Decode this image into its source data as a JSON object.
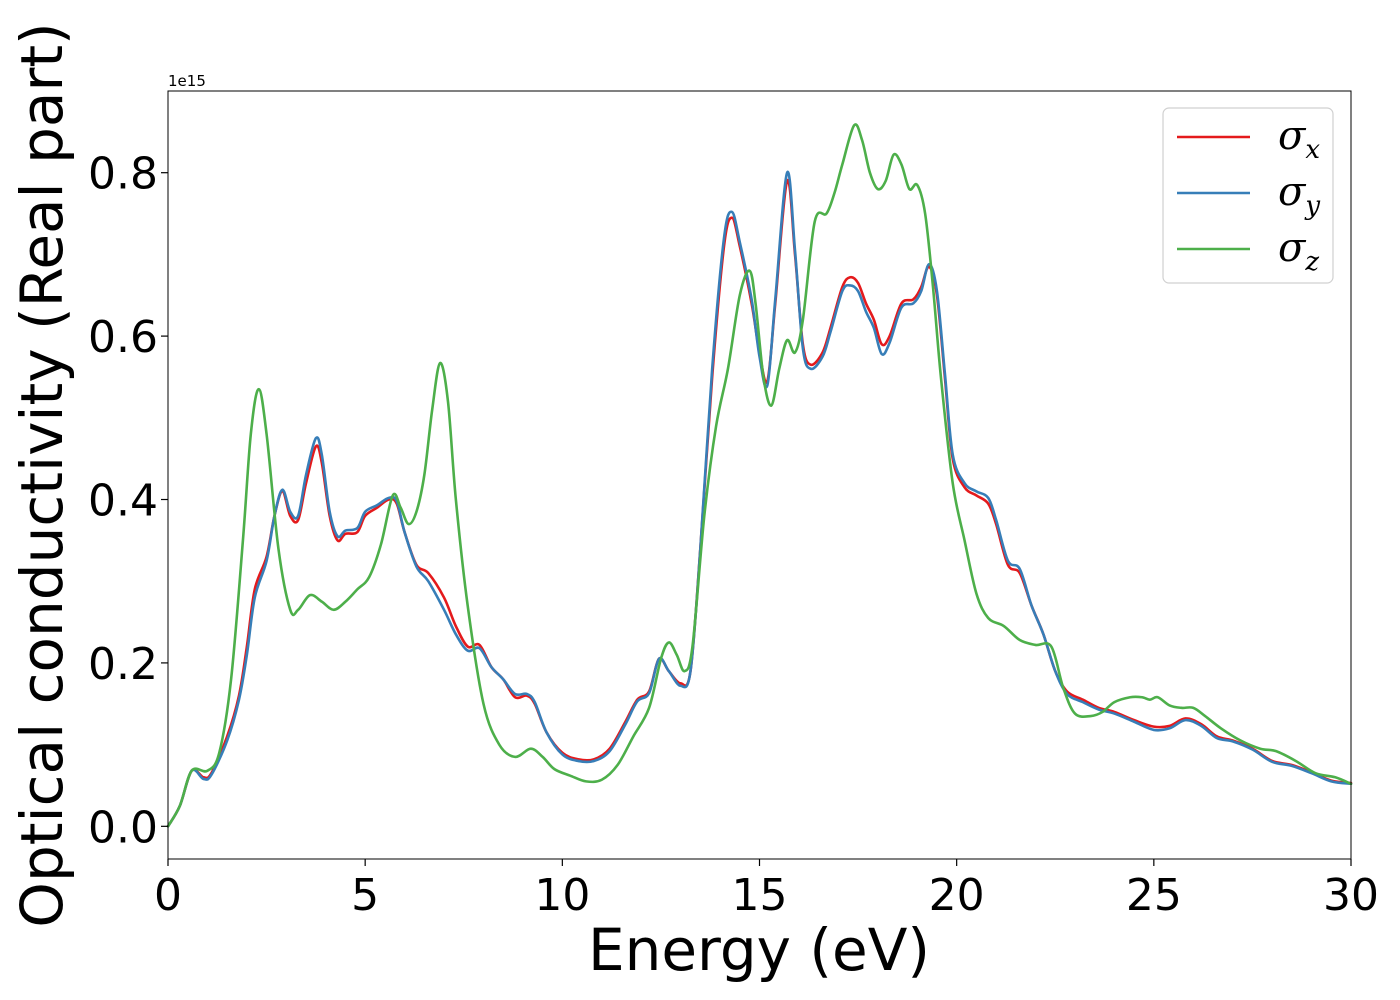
{
  "chart_data": {
    "type": "line",
    "title": "",
    "xlabel": "Energy (eV)",
    "ylabel": "Optical conductivity (Real part)",
    "y_offset_text": "1e15",
    "xlim": [
      0,
      30
    ],
    "ylim": [
      -0.04,
      0.9
    ],
    "x_ticks": [
      0,
      5,
      10,
      15,
      20,
      25,
      30
    ],
    "x_tick_labels": [
      "0",
      "5",
      "10",
      "15",
      "20",
      "25",
      "30"
    ],
    "y_ticks": [
      0.0,
      0.2,
      0.4,
      0.6,
      0.8
    ],
    "y_tick_labels": [
      "0.0",
      "0.2",
      "0.4",
      "0.6",
      "0.8"
    ],
    "grid": false,
    "legend_position": "top-right",
    "series": [
      {
        "name": "σx",
        "symbol": "σ",
        "subscript": "x",
        "color": "#e41a1c",
        "points": [
          [
            0,
            0
          ],
          [
            0.3,
            0.025
          ],
          [
            0.6,
            0.068
          ],
          [
            0.9,
            0.06
          ],
          [
            1.1,
            0.065
          ],
          [
            1.5,
            0.11
          ],
          [
            1.8,
            0.16
          ],
          [
            2.0,
            0.22
          ],
          [
            2.2,
            0.29
          ],
          [
            2.5,
            0.33
          ],
          [
            2.7,
            0.38
          ],
          [
            2.9,
            0.41
          ],
          [
            3.1,
            0.38
          ],
          [
            3.3,
            0.375
          ],
          [
            3.5,
            0.42
          ],
          [
            3.75,
            0.465
          ],
          [
            3.9,
            0.445
          ],
          [
            4.1,
            0.38
          ],
          [
            4.3,
            0.35
          ],
          [
            4.5,
            0.358
          ],
          [
            4.8,
            0.36
          ],
          [
            5.0,
            0.38
          ],
          [
            5.3,
            0.39
          ],
          [
            5.6,
            0.4
          ],
          [
            5.8,
            0.395
          ],
          [
            6.0,
            0.36
          ],
          [
            6.3,
            0.32
          ],
          [
            6.6,
            0.31
          ],
          [
            7.0,
            0.28
          ],
          [
            7.3,
            0.245
          ],
          [
            7.6,
            0.22
          ],
          [
            7.9,
            0.222
          ],
          [
            8.2,
            0.195
          ],
          [
            8.5,
            0.18
          ],
          [
            8.8,
            0.158
          ],
          [
            9.1,
            0.16
          ],
          [
            9.3,
            0.15
          ],
          [
            9.6,
            0.115
          ],
          [
            10.0,
            0.09
          ],
          [
            10.4,
            0.082
          ],
          [
            10.8,
            0.082
          ],
          [
            11.2,
            0.095
          ],
          [
            11.6,
            0.128
          ],
          [
            11.9,
            0.155
          ],
          [
            12.2,
            0.165
          ],
          [
            12.45,
            0.205
          ],
          [
            12.7,
            0.19
          ],
          [
            13.0,
            0.175
          ],
          [
            13.25,
            0.19
          ],
          [
            13.5,
            0.34
          ],
          [
            13.8,
            0.55
          ],
          [
            14.1,
            0.71
          ],
          [
            14.3,
            0.745
          ],
          [
            14.5,
            0.71
          ],
          [
            14.8,
            0.64
          ],
          [
            15.0,
            0.58
          ],
          [
            15.2,
            0.545
          ],
          [
            15.4,
            0.64
          ],
          [
            15.7,
            0.79
          ],
          [
            15.9,
            0.7
          ],
          [
            16.1,
            0.59
          ],
          [
            16.3,
            0.565
          ],
          [
            16.6,
            0.58
          ],
          [
            16.8,
            0.61
          ],
          [
            17.1,
            0.66
          ],
          [
            17.3,
            0.672
          ],
          [
            17.5,
            0.665
          ],
          [
            17.7,
            0.64
          ],
          [
            17.9,
            0.62
          ],
          [
            18.1,
            0.59
          ],
          [
            18.3,
            0.6
          ],
          [
            18.6,
            0.64
          ],
          [
            18.9,
            0.645
          ],
          [
            19.1,
            0.66
          ],
          [
            19.3,
            0.685
          ],
          [
            19.5,
            0.65
          ],
          [
            19.7,
            0.55
          ],
          [
            19.9,
            0.45
          ],
          [
            20.2,
            0.415
          ],
          [
            20.5,
            0.405
          ],
          [
            20.8,
            0.395
          ],
          [
            21.0,
            0.37
          ],
          [
            21.3,
            0.32
          ],
          [
            21.6,
            0.31
          ],
          [
            21.9,
            0.27
          ],
          [
            22.2,
            0.235
          ],
          [
            22.5,
            0.19
          ],
          [
            22.8,
            0.165
          ],
          [
            23.2,
            0.155
          ],
          [
            23.6,
            0.145
          ],
          [
            24.0,
            0.14
          ],
          [
            24.5,
            0.13
          ],
          [
            25.0,
            0.122
          ],
          [
            25.4,
            0.123
          ],
          [
            25.8,
            0.132
          ],
          [
            26.2,
            0.125
          ],
          [
            26.6,
            0.11
          ],
          [
            27.0,
            0.105
          ],
          [
            27.5,
            0.095
          ],
          [
            28.0,
            0.08
          ],
          [
            28.5,
            0.075
          ],
          [
            29.0,
            0.066
          ],
          [
            29.5,
            0.056
          ],
          [
            30.0,
            0.053
          ]
        ]
      },
      {
        "name": "σy",
        "symbol": "σ",
        "subscript": "y",
        "color": "#377eb8",
        "points": [
          [
            0,
            0
          ],
          [
            0.3,
            0.025
          ],
          [
            0.6,
            0.068
          ],
          [
            0.9,
            0.058
          ],
          [
            1.1,
            0.063
          ],
          [
            1.5,
            0.105
          ],
          [
            1.8,
            0.155
          ],
          [
            2.0,
            0.21
          ],
          [
            2.2,
            0.28
          ],
          [
            2.5,
            0.325
          ],
          [
            2.7,
            0.38
          ],
          [
            2.9,
            0.412
          ],
          [
            3.1,
            0.385
          ],
          [
            3.3,
            0.38
          ],
          [
            3.5,
            0.43
          ],
          [
            3.75,
            0.475
          ],
          [
            3.9,
            0.455
          ],
          [
            4.1,
            0.385
          ],
          [
            4.3,
            0.355
          ],
          [
            4.5,
            0.362
          ],
          [
            4.8,
            0.365
          ],
          [
            5.0,
            0.385
          ],
          [
            5.3,
            0.393
          ],
          [
            5.6,
            0.402
          ],
          [
            5.8,
            0.398
          ],
          [
            6.0,
            0.36
          ],
          [
            6.3,
            0.318
          ],
          [
            6.6,
            0.3
          ],
          [
            7.0,
            0.265
          ],
          [
            7.3,
            0.235
          ],
          [
            7.6,
            0.215
          ],
          [
            7.9,
            0.218
          ],
          [
            8.2,
            0.195
          ],
          [
            8.5,
            0.18
          ],
          [
            8.8,
            0.162
          ],
          [
            9.1,
            0.162
          ],
          [
            9.3,
            0.152
          ],
          [
            9.6,
            0.115
          ],
          [
            10.0,
            0.088
          ],
          [
            10.4,
            0.08
          ],
          [
            10.8,
            0.08
          ],
          [
            11.2,
            0.092
          ],
          [
            11.6,
            0.125
          ],
          [
            11.9,
            0.153
          ],
          [
            12.2,
            0.163
          ],
          [
            12.45,
            0.205
          ],
          [
            12.7,
            0.19
          ],
          [
            13.0,
            0.172
          ],
          [
            13.25,
            0.19
          ],
          [
            13.5,
            0.34
          ],
          [
            13.8,
            0.56
          ],
          [
            14.1,
            0.72
          ],
          [
            14.3,
            0.752
          ],
          [
            14.5,
            0.715
          ],
          [
            14.8,
            0.645
          ],
          [
            15.0,
            0.575
          ],
          [
            15.2,
            0.54
          ],
          [
            15.4,
            0.645
          ],
          [
            15.7,
            0.8
          ],
          [
            15.9,
            0.705
          ],
          [
            16.1,
            0.585
          ],
          [
            16.3,
            0.56
          ],
          [
            16.6,
            0.575
          ],
          [
            16.8,
            0.605
          ],
          [
            17.1,
            0.655
          ],
          [
            17.3,
            0.662
          ],
          [
            17.5,
            0.655
          ],
          [
            17.7,
            0.63
          ],
          [
            17.9,
            0.61
          ],
          [
            18.1,
            0.578
          ],
          [
            18.3,
            0.592
          ],
          [
            18.6,
            0.635
          ],
          [
            18.9,
            0.64
          ],
          [
            19.1,
            0.655
          ],
          [
            19.3,
            0.688
          ],
          [
            19.5,
            0.655
          ],
          [
            19.7,
            0.555
          ],
          [
            19.9,
            0.455
          ],
          [
            20.2,
            0.42
          ],
          [
            20.5,
            0.41
          ],
          [
            20.8,
            0.402
          ],
          [
            21.0,
            0.375
          ],
          [
            21.3,
            0.325
          ],
          [
            21.6,
            0.315
          ],
          [
            21.9,
            0.27
          ],
          [
            22.2,
            0.235
          ],
          [
            22.5,
            0.19
          ],
          [
            22.8,
            0.162
          ],
          [
            23.2,
            0.152
          ],
          [
            23.6,
            0.143
          ],
          [
            24.0,
            0.138
          ],
          [
            24.5,
            0.128
          ],
          [
            25.0,
            0.118
          ],
          [
            25.4,
            0.12
          ],
          [
            25.8,
            0.13
          ],
          [
            26.2,
            0.123
          ],
          [
            26.6,
            0.108
          ],
          [
            27.0,
            0.104
          ],
          [
            27.5,
            0.094
          ],
          [
            28.0,
            0.079
          ],
          [
            28.5,
            0.074
          ],
          [
            29.0,
            0.065
          ],
          [
            29.5,
            0.055
          ],
          [
            30.0,
            0.052
          ]
        ]
      },
      {
        "name": "σz",
        "symbol": "σ",
        "subscript": "z",
        "color": "#4daf4a",
        "points": [
          [
            0,
            0
          ],
          [
            0.3,
            0.025
          ],
          [
            0.6,
            0.068
          ],
          [
            1.0,
            0.068
          ],
          [
            1.3,
            0.09
          ],
          [
            1.6,
            0.18
          ],
          [
            1.9,
            0.35
          ],
          [
            2.1,
            0.48
          ],
          [
            2.3,
            0.535
          ],
          [
            2.5,
            0.48
          ],
          [
            2.8,
            0.34
          ],
          [
            3.1,
            0.265
          ],
          [
            3.3,
            0.265
          ],
          [
            3.6,
            0.283
          ],
          [
            3.9,
            0.275
          ],
          [
            4.2,
            0.265
          ],
          [
            4.5,
            0.275
          ],
          [
            4.8,
            0.29
          ],
          [
            5.1,
            0.305
          ],
          [
            5.4,
            0.345
          ],
          [
            5.7,
            0.405
          ],
          [
            5.9,
            0.39
          ],
          [
            6.1,
            0.37
          ],
          [
            6.3,
            0.385
          ],
          [
            6.5,
            0.43
          ],
          [
            6.7,
            0.51
          ],
          [
            6.9,
            0.567
          ],
          [
            7.1,
            0.52
          ],
          [
            7.3,
            0.4
          ],
          [
            7.6,
            0.27
          ],
          [
            8.0,
            0.15
          ],
          [
            8.4,
            0.1
          ],
          [
            8.8,
            0.085
          ],
          [
            9.2,
            0.095
          ],
          [
            9.5,
            0.085
          ],
          [
            9.8,
            0.07
          ],
          [
            10.2,
            0.062
          ],
          [
            10.6,
            0.055
          ],
          [
            11.0,
            0.057
          ],
          [
            11.4,
            0.075
          ],
          [
            11.8,
            0.11
          ],
          [
            12.2,
            0.145
          ],
          [
            12.5,
            0.205
          ],
          [
            12.7,
            0.225
          ],
          [
            12.9,
            0.21
          ],
          [
            13.1,
            0.19
          ],
          [
            13.3,
            0.22
          ],
          [
            13.6,
            0.38
          ],
          [
            13.9,
            0.49
          ],
          [
            14.2,
            0.56
          ],
          [
            14.5,
            0.65
          ],
          [
            14.75,
            0.68
          ],
          [
            14.9,
            0.64
          ],
          [
            15.1,
            0.55
          ],
          [
            15.3,
            0.515
          ],
          [
            15.5,
            0.56
          ],
          [
            15.7,
            0.595
          ],
          [
            15.9,
            0.58
          ],
          [
            16.1,
            0.62
          ],
          [
            16.4,
            0.74
          ],
          [
            16.7,
            0.75
          ],
          [
            16.9,
            0.775
          ],
          [
            17.1,
            0.81
          ],
          [
            17.4,
            0.858
          ],
          [
            17.6,
            0.84
          ],
          [
            17.8,
            0.8
          ],
          [
            18.0,
            0.78
          ],
          [
            18.2,
            0.79
          ],
          [
            18.4,
            0.822
          ],
          [
            18.6,
            0.81
          ],
          [
            18.8,
            0.78
          ],
          [
            19.0,
            0.785
          ],
          [
            19.2,
            0.75
          ],
          [
            19.4,
            0.66
          ],
          [
            19.6,
            0.55
          ],
          [
            19.9,
            0.42
          ],
          [
            20.2,
            0.35
          ],
          [
            20.5,
            0.285
          ],
          [
            20.8,
            0.255
          ],
          [
            21.2,
            0.245
          ],
          [
            21.6,
            0.228
          ],
          [
            22.0,
            0.222
          ],
          [
            22.4,
            0.22
          ],
          [
            22.7,
            0.17
          ],
          [
            23.0,
            0.138
          ],
          [
            23.4,
            0.135
          ],
          [
            23.7,
            0.14
          ],
          [
            24.0,
            0.152
          ],
          [
            24.4,
            0.158
          ],
          [
            24.7,
            0.158
          ],
          [
            24.9,
            0.155
          ],
          [
            25.1,
            0.158
          ],
          [
            25.4,
            0.148
          ],
          [
            25.7,
            0.145
          ],
          [
            26.0,
            0.145
          ],
          [
            26.3,
            0.135
          ],
          [
            26.7,
            0.12
          ],
          [
            27.2,
            0.105
          ],
          [
            27.7,
            0.095
          ],
          [
            28.1,
            0.092
          ],
          [
            28.6,
            0.08
          ],
          [
            29.1,
            0.065
          ],
          [
            29.6,
            0.06
          ],
          [
            30.0,
            0.052
          ]
        ]
      }
    ]
  }
}
